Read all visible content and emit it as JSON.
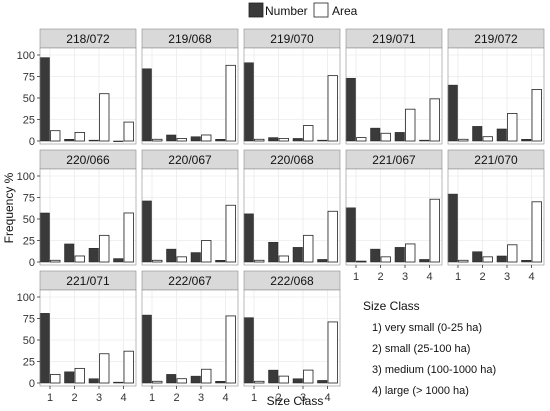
{
  "chart_data": {
    "type": "bar",
    "xlabel": "Size Class",
    "ylabel": "Frequency %",
    "categories": [
      "1",
      "2",
      "3",
      "4"
    ],
    "ylim": [
      0,
      100
    ],
    "yticks": [
      0,
      25,
      50,
      75,
      100
    ],
    "grid": true,
    "legend": {
      "placement": "top-center",
      "entries": [
        {
          "name": "Number",
          "color": "#3a3a3a"
        },
        {
          "name": "Area",
          "color": "#ffffff"
        }
      ]
    },
    "size_class_legend": {
      "title": "Size Class",
      "items": [
        "1) very small (0-25 ha)",
        "2) small (25-100 ha)",
        "3) medium (100-1000 ha)",
        "4) large (> 1000 ha)"
      ]
    },
    "panels": [
      {
        "title": "218/072",
        "number": [
          97,
          2,
          1,
          0
        ],
        "area": [
          12,
          10,
          55,
          22
        ]
      },
      {
        "title": "219/068",
        "number": [
          84,
          7,
          5,
          2
        ],
        "area": [
          2,
          3,
          7,
          88
        ]
      },
      {
        "title": "219/070",
        "number": [
          91,
          4,
          3,
          1
        ],
        "area": [
          2,
          3,
          18,
          76
        ]
      },
      {
        "title": "219/071",
        "number": [
          73,
          15,
          10,
          1
        ],
        "area": [
          4,
          9,
          37,
          49
        ]
      },
      {
        "title": "219/072",
        "number": [
          65,
          17,
          14,
          2
        ],
        "area": [
          2,
          5,
          32,
          60
        ]
      },
      {
        "title": "220/066",
        "number": [
          57,
          21,
          16,
          4
        ],
        "area": [
          2,
          7,
          31,
          57
        ]
      },
      {
        "title": "220/067",
        "number": [
          71,
          15,
          11,
          2
        ],
        "area": [
          2,
          6,
          25,
          66
        ]
      },
      {
        "title": "220/068",
        "number": [
          56,
          23,
          17,
          3
        ],
        "area": [
          2,
          7,
          31,
          59
        ]
      },
      {
        "title": "221/067",
        "number": [
          63,
          15,
          17,
          3
        ],
        "area": [
          1,
          6,
          21,
          73
        ]
      },
      {
        "title": "221/070",
        "number": [
          79,
          12,
          7,
          2
        ],
        "area": [
          2,
          6,
          20,
          70
        ]
      },
      {
        "title": "221/071",
        "number": [
          81,
          13,
          5,
          1
        ],
        "area": [
          10,
          17,
          34,
          37
        ]
      },
      {
        "title": "222/067",
        "number": [
          79,
          10,
          8,
          2
        ],
        "area": [
          2,
          5,
          16,
          78
        ]
      },
      {
        "title": "222/068",
        "number": [
          76,
          15,
          5,
          3
        ],
        "area": [
          2,
          8,
          15,
          71
        ]
      }
    ]
  }
}
